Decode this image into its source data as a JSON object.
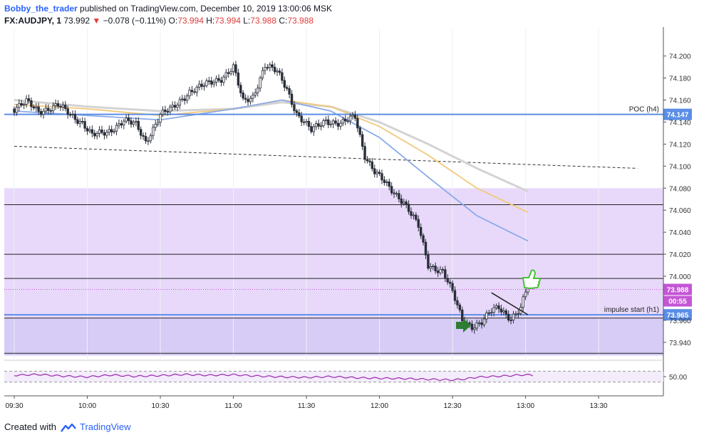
{
  "header": {
    "author": "Bobby_the_trader",
    "published": " published on TradingView.com, December 10, 2019 13:00:06 MSK",
    "symbol": "FX:AUDJPY, 1",
    "price": "73.992",
    "change": "−0.078 (−0.11%)",
    "o_label": "O:",
    "o": "73.994",
    "h_label": "H:",
    "h": "73.994",
    "l_label": "L:",
    "l": "73.988",
    "c_label": "C:",
    "c": "73.988"
  },
  "footer": {
    "created": "Created with",
    "brand": "TradingView"
  },
  "colors": {
    "up": "#ffffff",
    "down": "#2a2e39",
    "zone": "#e8d9fb",
    "zone_low": "#d6ccf6",
    "level_blue": "#5b8ee6",
    "ma_blue": "#88a9e8",
    "ma_orange": "#f2c97b",
    "ma_gray": "#d3d3d3",
    "rsi": "#9c27b0",
    "price_badge": "#c456d6",
    "arrow": "#2e7d32",
    "thumb": "#44c434"
  },
  "icons": {
    "signal": "arrow-right-icon",
    "confirm": "thumbs-up-icon"
  },
  "chart_data": {
    "type": "candlestick",
    "symbol": "FX:AUDJPY",
    "timeframe": "1",
    "ylim": [
      73.925,
      74.225
    ],
    "yticks": [
      "74.200",
      "74.180",
      "74.160",
      "74.140",
      "74.120",
      "74.100",
      "74.080",
      "74.060",
      "74.040",
      "74.020",
      "74.000",
      "73.960",
      "73.940"
    ],
    "xticks": [
      {
        "label": "09:30",
        "t": -60
      },
      {
        "label": "10:00",
        "t": -30
      },
      {
        "label": "10:30",
        "t": 0
      },
      {
        "label": "11:00",
        "t": 30
      },
      {
        "label": "11:30",
        "t": 60
      },
      {
        "label": "12:00",
        "t": 90
      },
      {
        "label": "12:30",
        "t": 120
      },
      {
        "label": "13:00",
        "t": 150
      },
      {
        "label": "13:30",
        "t": 180
      }
    ],
    "x_time_range": [
      "09:30",
      "13:56"
    ],
    "key_points": [
      {
        "t": -60,
        "v": 74.152
      },
      {
        "t": -55,
        "v": 74.158
      },
      {
        "t": -50,
        "v": 74.15
      },
      {
        "t": -42,
        "v": 74.155
      },
      {
        "t": -36,
        "v": 74.145
      },
      {
        "t": -32,
        "v": 74.14
      },
      {
        "t": -28,
        "v": 74.128
      },
      {
        "t": -22,
        "v": 74.13
      },
      {
        "t": -15,
        "v": 74.142
      },
      {
        "t": -10,
        "v": 74.137
      },
      {
        "t": -6,
        "v": 74.122
      },
      {
        "t": 0,
        "v": 74.147
      },
      {
        "t": 5,
        "v": 74.152
      },
      {
        "t": 12,
        "v": 74.168
      },
      {
        "t": 20,
        "v": 74.175
      },
      {
        "t": 25,
        "v": 74.18
      },
      {
        "t": 30,
        "v": 74.19
      },
      {
        "t": 34,
        "v": 74.158
      },
      {
        "t": 38,
        "v": 74.163
      },
      {
        "t": 43,
        "v": 74.192
      },
      {
        "t": 48,
        "v": 74.185
      },
      {
        "t": 52,
        "v": 74.17
      },
      {
        "t": 56,
        "v": 74.148
      },
      {
        "t": 62,
        "v": 74.132
      },
      {
        "t": 68,
        "v": 74.142
      },
      {
        "t": 74,
        "v": 74.138
      },
      {
        "t": 80,
        "v": 74.145
      },
      {
        "t": 84,
        "v": 74.11
      },
      {
        "t": 88,
        "v": 74.095
      },
      {
        "t": 94,
        "v": 74.08
      },
      {
        "t": 100,
        "v": 74.068
      },
      {
        "t": 106,
        "v": 74.045
      },
      {
        "t": 110,
        "v": 74.01
      },
      {
        "t": 116,
        "v": 74.005
      },
      {
        "t": 120,
        "v": 73.985
      },
      {
        "t": 124,
        "v": 73.96
      },
      {
        "t": 128,
        "v": 73.955
      },
      {
        "t": 132,
        "v": 73.958
      },
      {
        "t": 136,
        "v": 73.968
      },
      {
        "t": 139,
        "v": 73.972
      },
      {
        "t": 144,
        "v": 73.962
      },
      {
        "t": 148,
        "v": 73.97
      },
      {
        "t": 151,
        "v": 73.993
      },
      {
        "t": 153,
        "v": 73.988
      }
    ],
    "last_price": 73.988,
    "bar_countdown": "00:55",
    "levels": [
      {
        "label": "POC (h4)",
        "value": 74.147,
        "color": "#5b8ee6",
        "badge": "74.147"
      },
      {
        "label": "impulse start (h1)",
        "value": 73.965,
        "color": "#5b8ee6",
        "badge": "73.965"
      }
    ],
    "horizontal_lines": [
      74.065,
      74.02,
      73.998,
      73.962,
      73.93
    ],
    "zones": [
      {
        "from": 74.08,
        "to": 73.962
      },
      {
        "from": 73.962,
        "to": 73.928
      }
    ],
    "trendline_dashed": {
      "from": {
        "t": -60,
        "v": 74.118
      },
      "to": {
        "t": 196,
        "v": 74.098
      }
    },
    "trendline_solid": {
      "from": {
        "t": 136,
        "v": 73.985
      },
      "to": {
        "t": 151,
        "v": 73.965
      }
    },
    "moving_averages": [
      {
        "color": "#d3d3d3",
        "points": [
          [
            -60,
            74.16
          ],
          [
            -30,
            74.154
          ],
          [
            0,
            74.15
          ],
          [
            30,
            74.152
          ],
          [
            50,
            74.158
          ],
          [
            70,
            74.154
          ],
          [
            90,
            74.14
          ],
          [
            110,
            74.12
          ],
          [
            130,
            74.098
          ],
          [
            151,
            74.077
          ]
        ]
      },
      {
        "color": "#f2c97b",
        "points": [
          [
            -60,
            74.156
          ],
          [
            -30,
            74.152
          ],
          [
            0,
            74.146
          ],
          [
            30,
            74.152
          ],
          [
            50,
            74.16
          ],
          [
            70,
            74.154
          ],
          [
            90,
            74.136
          ],
          [
            110,
            74.11
          ],
          [
            130,
            74.08
          ],
          [
            151,
            74.058
          ]
        ]
      },
      {
        "color": "#88a9e8",
        "points": [
          [
            -60,
            74.15
          ],
          [
            -30,
            74.146
          ],
          [
            0,
            74.142
          ],
          [
            30,
            74.152
          ],
          [
            50,
            74.16
          ],
          [
            70,
            74.15
          ],
          [
            90,
            74.126
          ],
          [
            110,
            74.09
          ],
          [
            130,
            74.055
          ],
          [
            151,
            74.032
          ]
        ]
      }
    ],
    "rsi": {
      "label": "50.00",
      "range": [
        0,
        100
      ],
      "bands": [
        70,
        30
      ],
      "points": [
        [
          -60,
          55
        ],
        [
          -50,
          58
        ],
        [
          -40,
          52
        ],
        [
          -30,
          49
        ],
        [
          -20,
          56
        ],
        [
          -10,
          51
        ],
        [
          0,
          54
        ],
        [
          10,
          58
        ],
        [
          20,
          55
        ],
        [
          30,
          57
        ],
        [
          40,
          52
        ],
        [
          50,
          49
        ],
        [
          60,
          47
        ],
        [
          70,
          50
        ],
        [
          80,
          46
        ],
        [
          90,
          44
        ],
        [
          100,
          43
        ],
        [
          110,
          40
        ],
        [
          120,
          38
        ],
        [
          125,
          41
        ],
        [
          130,
          48
        ],
        [
          140,
          52
        ],
        [
          150,
          57
        ],
        [
          153,
          55
        ]
      ]
    }
  }
}
